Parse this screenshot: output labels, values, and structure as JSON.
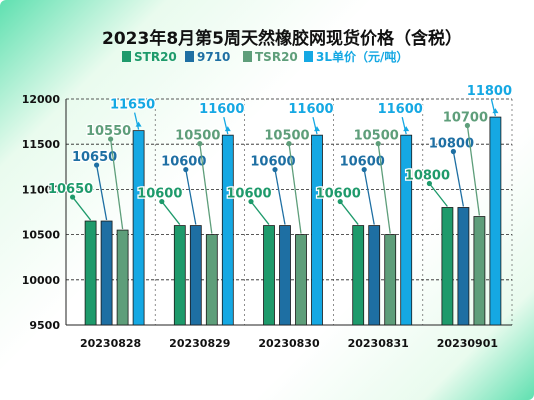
{
  "chart_data": {
    "type": "bar",
    "title": "2023年8月第5周天然橡胶网现货价格（含税）",
    "categories": [
      "20230828",
      "20230829",
      "20230830",
      "20230831",
      "20230901"
    ],
    "series": [
      {
        "name": "STR20",
        "color": "#1e9a6b",
        "values": [
          10650,
          10600,
          10600,
          10600,
          10800
        ]
      },
      {
        "name": "9710",
        "color": "#1e6fa3",
        "values": [
          10650,
          10600,
          10600,
          10600,
          10800
        ]
      },
      {
        "name": "TSR20",
        "color": "#5e9e7a",
        "values": [
          10550,
          10500,
          10500,
          10500,
          10700
        ]
      },
      {
        "name": "3L单价（元/吨）",
        "color": "#15a8e3",
        "values": [
          11650,
          11600,
          11600,
          11600,
          11800
        ]
      }
    ],
    "label_colors": [
      "#1e9a6b",
      "#1e6fa3",
      "#5e9e7a",
      "#15a8e3"
    ],
    "ylim": [
      9500,
      12000
    ],
    "yticks": [
      9500,
      10000,
      10500,
      11000,
      11500,
      12000
    ],
    "grid": true,
    "legend": "top"
  }
}
